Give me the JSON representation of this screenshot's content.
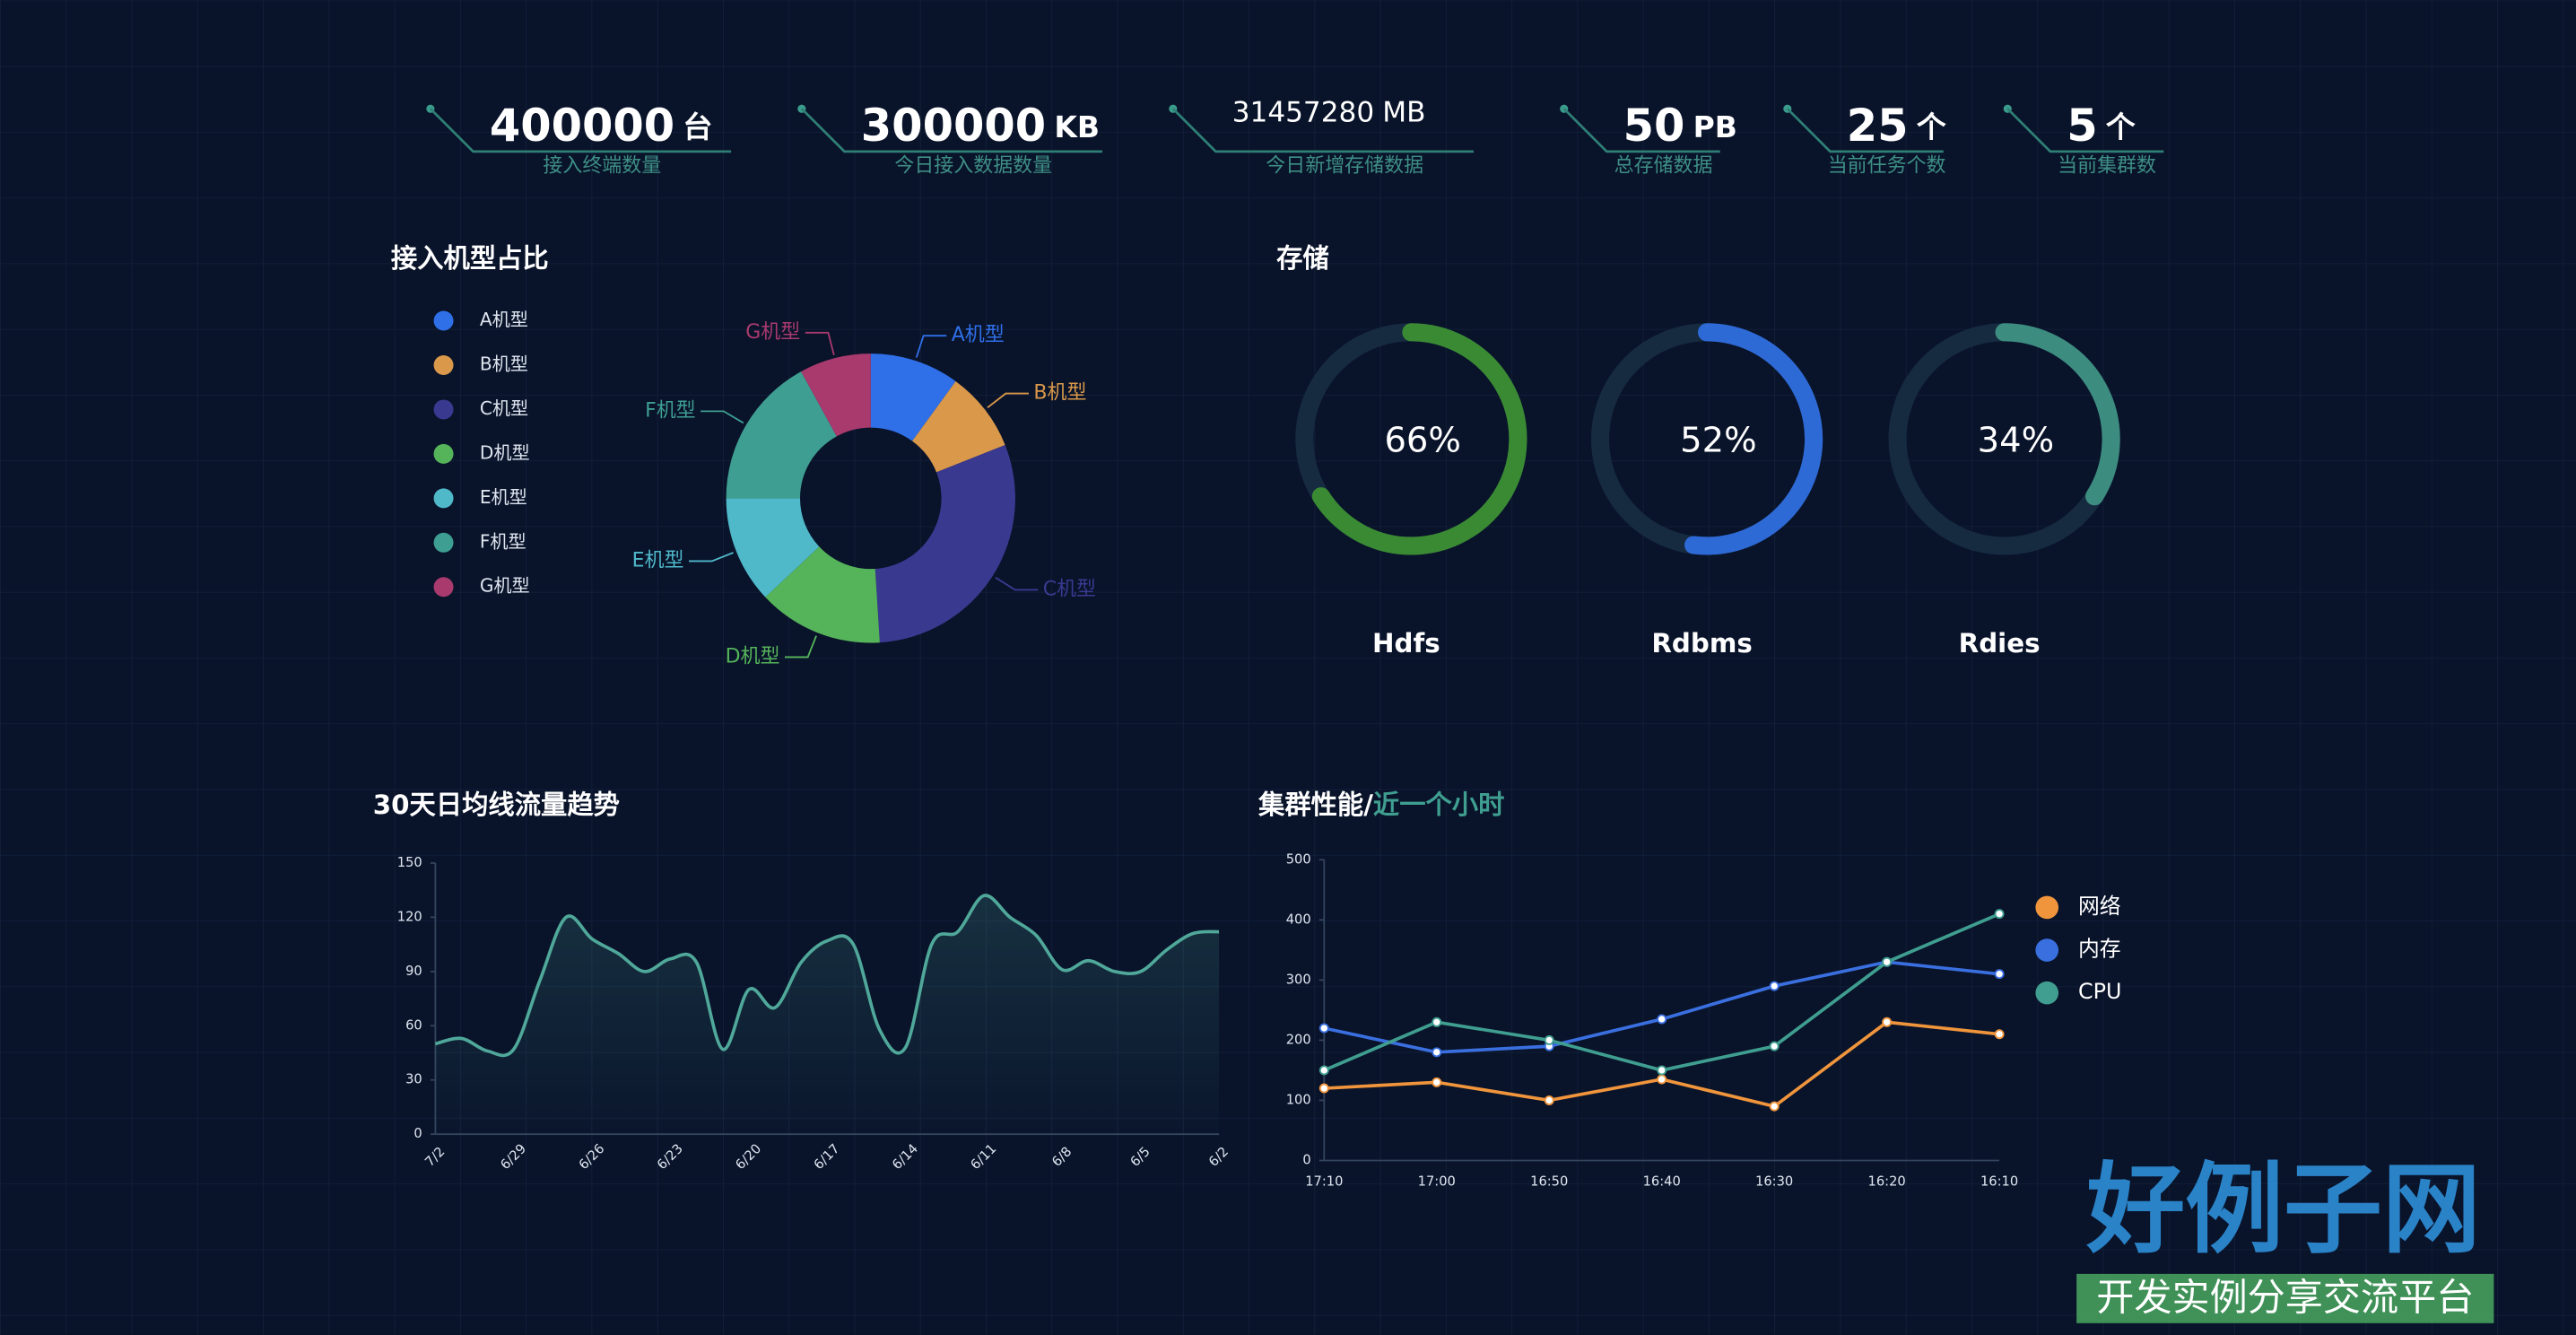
{
  "stats": [
    {
      "value": 400000,
      "unit": "台",
      "label": "接入终端数量"
    },
    {
      "value": 300000,
      "unit": "KB",
      "label": "今日接入数据数量"
    },
    {
      "value": 31457280,
      "unit": "MB",
      "label": "今日新增存储数据"
    },
    {
      "value": 50,
      "unit": "PB",
      "label": "总存储数据"
    },
    {
      "value": 25,
      "unit": "个",
      "label": "当前任务个数"
    },
    {
      "value": 5,
      "unit": "个",
      "label": "当前集群数"
    }
  ],
  "chart_data": [
    {
      "type": "pie",
      "title": "接入机型占比",
      "categories": [
        "A机型",
        "B机型",
        "C机型",
        "D机型",
        "E机型",
        "F机型",
        "G机型"
      ],
      "values": [
        10,
        9,
        30,
        14,
        12,
        17,
        8
      ],
      "colors": [
        "#2f6fe8",
        "#d9984a",
        "#3a3990",
        "#55b45a",
        "#4fb8c9",
        "#3e9e92",
        "#a83a6e"
      ]
    },
    {
      "type": "ring",
      "title": "存储",
      "categories": [
        "Hdfs",
        "Rdbms",
        "Rdies"
      ],
      "values": [
        66,
        52,
        34
      ],
      "value_labels": [
        "66%",
        "52%",
        "34%"
      ],
      "colors": [
        "#3a8a34",
        "#2e6ad6",
        "#3d8c80"
      ]
    },
    {
      "type": "line",
      "title": "30天日均线流量趋势",
      "smooth": true,
      "area": true,
      "categories": [
        "7/2",
        null,
        null,
        "6/29",
        null,
        null,
        "6/26",
        null,
        null,
        "6/23",
        null,
        null,
        "6/20",
        null,
        null,
        "6/17",
        null,
        null,
        "6/14",
        null,
        null,
        "6/11",
        null,
        null,
        "6/8",
        null,
        null,
        "6/5",
        null,
        null,
        "6/2"
      ],
      "series": [
        {
          "name": "流量",
          "color": "#4fa89a",
          "values": [
            50,
            53,
            46,
            47,
            85,
            120,
            108,
            100,
            90,
            97,
            95,
            47,
            80,
            70,
            95,
            107,
            105,
            58,
            48,
            105,
            112,
            132,
            120,
            110,
            91,
            96,
            90,
            90,
            102,
            111,
            112
          ]
        }
      ],
      "ylim": [
        0,
        150
      ],
      "yticks": [
        0,
        30,
        60,
        90,
        120,
        150
      ]
    },
    {
      "type": "line",
      "title": "集群性能/",
      "subtitle": "近一个小时",
      "markers": true,
      "legend": "right",
      "categories": [
        "17:10",
        "17:00",
        "16:50",
        "16:40",
        "16:30",
        "16:20",
        "16:10"
      ],
      "series": [
        {
          "name": "网络",
          "color": "#f0953c",
          "values": [
            120,
            130,
            100,
            135,
            90,
            230,
            210
          ]
        },
        {
          "name": "内存",
          "color": "#3a6fe0",
          "values": [
            220,
            180,
            190,
            235,
            290,
            330,
            310
          ]
        },
        {
          "name": "CPU",
          "color": "#3f9e90",
          "values": [
            150,
            230,
            200,
            150,
            190,
            330,
            410
          ]
        }
      ],
      "ylim": [
        0,
        500
      ],
      "yticks": [
        0,
        100,
        200,
        300,
        400,
        500
      ]
    }
  ],
  "watermark": {
    "title": "好例子网",
    "subtitle": "开发实例分享交流平台"
  }
}
